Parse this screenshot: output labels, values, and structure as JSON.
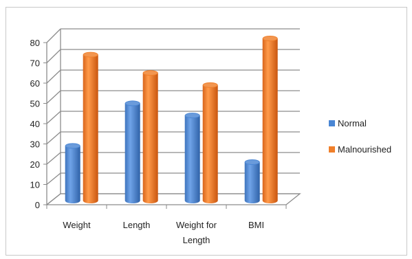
{
  "chart_data": {
    "type": "bar",
    "style": "3d-cylinder",
    "categories": [
      [
        "Weight"
      ],
      [
        "Length"
      ],
      [
        "Weight for",
        "Length"
      ],
      [
        "BMI"
      ]
    ],
    "series": [
      {
        "name": "Normal",
        "color": "#4a86d4",
        "values": [
          27,
          48,
          42,
          19
        ]
      },
      {
        "name": "Malnourished",
        "color": "#f07f2a",
        "values": [
          72,
          63,
          57,
          80
        ]
      }
    ],
    "ylim": [
      0,
      80
    ],
    "yticks": [
      "0",
      "10",
      "20",
      "30",
      "40",
      "50",
      "60",
      "70",
      "80"
    ],
    "grid": true,
    "legend_position": "right"
  }
}
